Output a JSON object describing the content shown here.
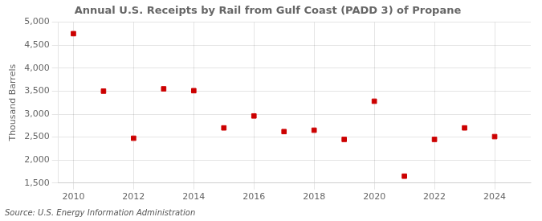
{
  "chart_data": {
    "type": "scatter",
    "title": "Annual U.S. Receipts by Rail from Gulf Coast (PADD 3) of Propane",
    "ylabel": "Thousand Barrels",
    "annotation": "Source: U.S. Energy Information Administration",
    "x": [
      2010,
      2011,
      2012,
      2013,
      2014,
      2015,
      2016,
      2017,
      2018,
      2019,
      2020,
      2021,
      2022,
      2023,
      2024
    ],
    "values": [
      4750,
      3500,
      2475,
      3550,
      3510,
      2700,
      2960,
      2620,
      2650,
      2450,
      3280,
      1650,
      2450,
      2700,
      2510
    ],
    "color": "#cc0000",
    "marker": "square",
    "xlim": [
      2009.5,
      2025.2
    ],
    "xticks": [
      2010,
      2012,
      2014,
      2016,
      2018,
      2020,
      2022,
      2024
    ],
    "ylim": [
      1500,
      5000
    ],
    "yticks": [
      {
        "value": 1500,
        "label": "1,500"
      },
      {
        "value": 2000,
        "label": "2,000"
      },
      {
        "value": 2500,
        "label": "2,500"
      },
      {
        "value": 3000,
        "label": "3,000"
      },
      {
        "value": 3500,
        "label": "3,500"
      },
      {
        "value": 4000,
        "label": "4,000"
      },
      {
        "value": 4500,
        "label": "4,500"
      },
      {
        "value": 5000,
        "label": "5,000"
      }
    ],
    "grid": true
  }
}
